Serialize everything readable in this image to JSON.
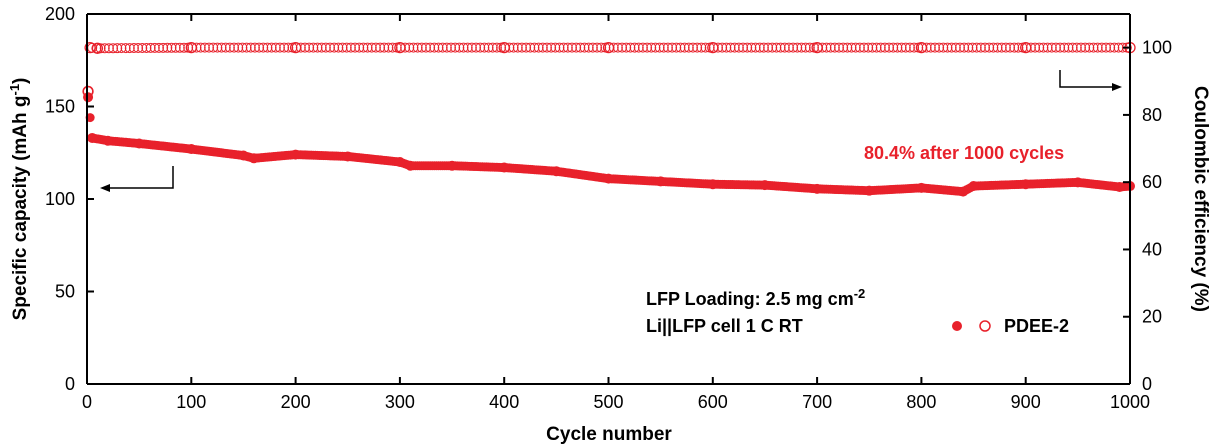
{
  "chart_data": {
    "type": "scatter",
    "xlabel": "Cycle number",
    "ylabel_left": "Specific capacity (mAh g",
    "ylabel_left_sup": "-1",
    "ylabel_left_end": ")",
    "ylabel_right": "Coulombic efficiency (%)",
    "xlim": [
      0,
      1000
    ],
    "ylim_left": [
      0,
      200
    ],
    "ylim_right": [
      0,
      110
    ],
    "xticks": [
      0,
      100,
      200,
      300,
      400,
      500,
      600,
      700,
      800,
      900,
      1000
    ],
    "yticks_left": [
      0,
      50,
      100,
      150,
      200
    ],
    "yticks_right": [
      0,
      20,
      40,
      60,
      80,
      100
    ],
    "series": [
      {
        "name": "PDEE-2",
        "axis": "left",
        "marker": "filled-circle",
        "color": "#e8212b",
        "x": [
          1,
          5,
          20,
          50,
          100,
          150,
          160,
          200,
          250,
          300,
          310,
          350,
          400,
          450,
          500,
          550,
          600,
          650,
          700,
          750,
          800,
          840,
          850,
          900,
          950,
          990,
          1000
        ],
        "values": [
          155,
          133,
          131.5,
          130,
          127,
          123.5,
          122,
          124,
          123,
          120,
          118,
          118,
          117,
          115,
          111,
          109.5,
          108,
          107.5,
          105.5,
          104.5,
          106,
          104,
          107,
          108,
          109,
          106.5,
          107
        ]
      },
      {
        "name": "PDEE-2",
        "axis": "right",
        "marker": "open-circle",
        "color": "#e8212b",
        "x": [
          1,
          3,
          10,
          100,
          200,
          300,
          400,
          500,
          600,
          700,
          800,
          900,
          1000
        ],
        "values": [
          87,
          100,
          99.8,
          100,
          100,
          100,
          100,
          100,
          100,
          100,
          100,
          100,
          100
        ]
      }
    ]
  },
  "annotations": {
    "retention": "80.4% after 1000 cycles",
    "loading_prefix": "LFP Loading: 2.5 mg cm",
    "loading_sup": "-2",
    "cell": "Li||LFP cell 1 C RT"
  },
  "legend": {
    "label": "PDEE-2"
  },
  "colors": {
    "series": "#e8212b",
    "highlight": "#ff6b6b",
    "axis": "#000000"
  }
}
